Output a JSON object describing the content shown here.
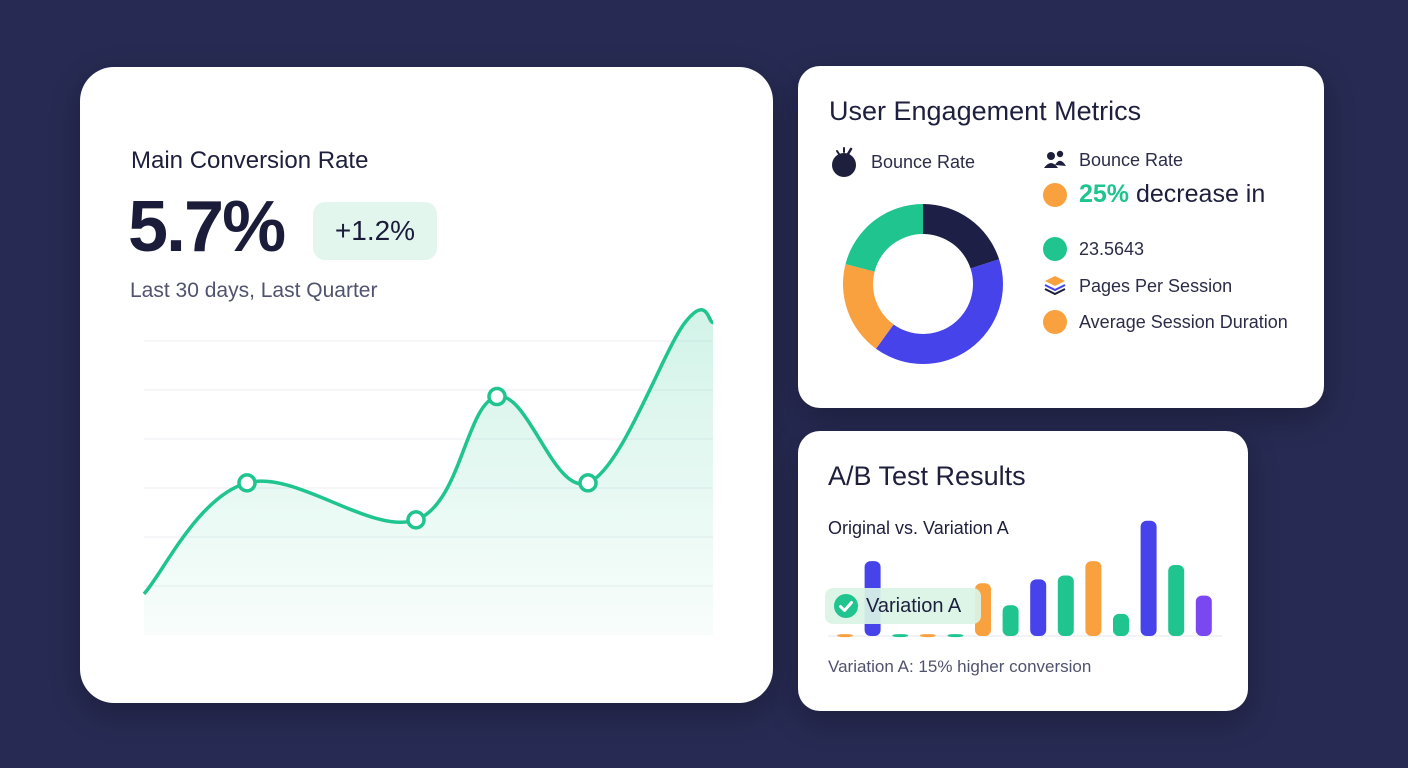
{
  "colors": {
    "background": "#272a52",
    "green": "#1fc48e",
    "blue": "#4643ea",
    "orange": "#f9a03f",
    "navy": "#1d1f46",
    "purple": "#7b47f0"
  },
  "main": {
    "title": "Main Conversion Rate",
    "value": "5.7%",
    "change": "+1.2%",
    "subtitle": "Last 30 days, Last Quarter"
  },
  "engagement": {
    "title": "User Engagement Metrics",
    "left_label": "Bounce Rate",
    "left_icon": "bomb-icon",
    "legend": [
      {
        "icon": "people-icon",
        "text": "Bounce Rate"
      },
      {
        "icon": "dot",
        "color": "#f9a03f",
        "pct": "25%",
        "text": "decrease in"
      },
      {
        "icon": "dot",
        "color": "#1fc48e",
        "text": "23.5643"
      },
      {
        "icon": "layers-icon",
        "text": "Pages Per Session"
      },
      {
        "icon": "dot",
        "color": "#f9a03f",
        "text": "Average Session Duration"
      }
    ]
  },
  "ab": {
    "title": "A/B Test Results",
    "subtitle": "Original vs. Variation A",
    "pill": "Variation A",
    "pill_icon": "check-circle-icon",
    "footnote": "Variation A: 15% higher conversion"
  },
  "chart_data": [
    {
      "type": "area",
      "x": [
        0,
        1,
        2,
        3,
        4,
        5,
        6
      ],
      "y": [
        1.0,
        3.7,
        2.8,
        5.8,
        3.7,
        7.6,
        7.6
      ],
      "markers": [
        1,
        2,
        3,
        4
      ],
      "ylim": [
        0,
        9
      ],
      "grid": true,
      "color": "#1fc48e"
    },
    {
      "type": "pie",
      "donut": true,
      "values": [
        20,
        40,
        19,
        21
      ],
      "colors": [
        "#1d1f46",
        "#4643ea",
        "#f9a03f",
        "#1fc48e"
      ]
    },
    {
      "type": "bar",
      "values": [
        2,
        78,
        2,
        2,
        2,
        55,
        32,
        59,
        63,
        78,
        23,
        120,
        74,
        42
      ],
      "colors": [
        "#f9a03f",
        "#4643ea",
        "#1fc48e",
        "#f9a03f",
        "#1fc48e",
        "#f9a03f",
        "#1fc48e",
        "#4643ea",
        "#1fc48e",
        "#f9a03f",
        "#1fc48e",
        "#4643ea",
        "#1fc48e",
        "#7b47f0"
      ],
      "ylim": [
        0,
        125
      ]
    }
  ]
}
